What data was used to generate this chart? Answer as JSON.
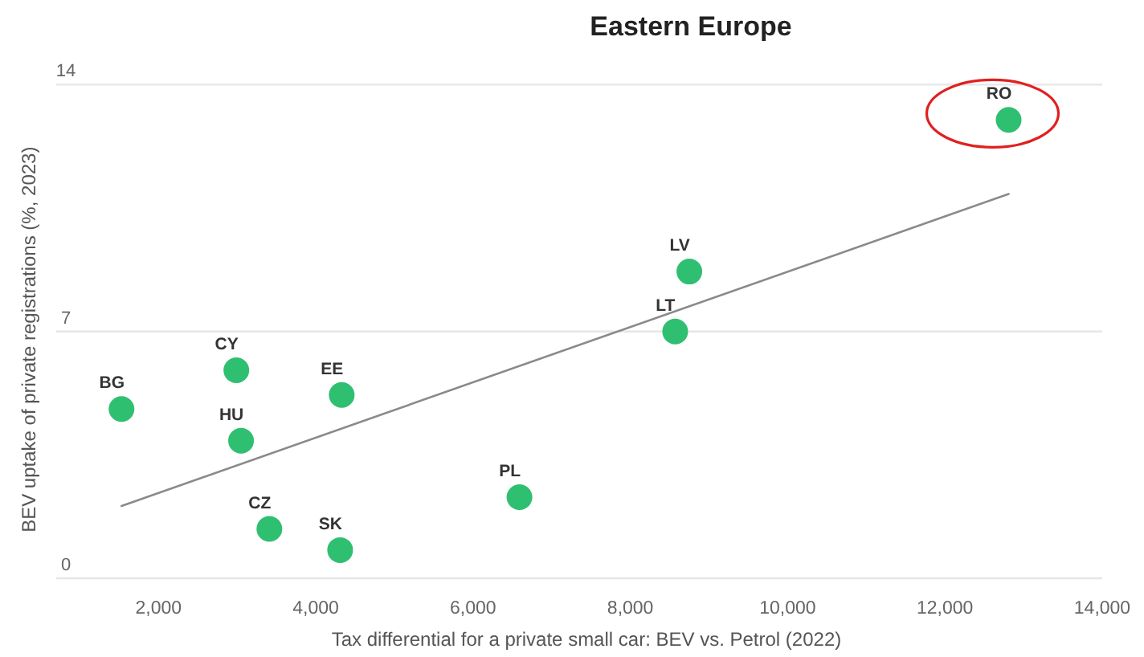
{
  "chart_data": {
    "type": "scatter",
    "title": "Eastern Europe",
    "xlabel": "Tax differential for a private small car: BEV vs. Petrol (2022)",
    "ylabel": "BEV uptake of private registrations (%, 2023)",
    "xlim": [
      700,
      14000
    ],
    "xticks": [
      {
        "value": 2000,
        "label": "2,000"
      },
      {
        "value": 4000,
        "label": "4,000"
      },
      {
        "value": 6000,
        "label": "6,000"
      },
      {
        "value": 8000,
        "label": "8,000"
      },
      {
        "value": 10000,
        "label": "10,000"
      },
      {
        "value": 12000,
        "label": "12,000"
      },
      {
        "value": 14000,
        "label": "14,000"
      }
    ],
    "ylim": [
      0,
      14
    ],
    "yticks": [
      0,
      7,
      14
    ],
    "grid": "y",
    "series": [
      {
        "marker": "circle",
        "color": "#2fbf71",
        "x": [
          1530,
          2990,
          4330,
          3050,
          6590,
          3410,
          4310,
          8750,
          8570,
          12810
        ],
        "values": [
          4.8,
          5.9,
          5.2,
          3.9,
          2.3,
          1.4,
          0.8,
          8.7,
          7.0,
          13.0
        ]
      },
      {
        "type": "line",
        "color": "#8a8a8a",
        "x": [
          1530,
          12810
        ],
        "values": [
          2.05,
          10.9
        ]
      }
    ],
    "annotations": [
      {
        "text": "BG",
        "x": 1530,
        "y": 4.8
      },
      {
        "text": "CY",
        "x": 2990,
        "y": 5.9
      },
      {
        "text": "EE",
        "x": 4330,
        "y": 5.2
      },
      {
        "text": "HU",
        "x": 3050,
        "y": 3.9
      },
      {
        "text": "PL",
        "x": 6590,
        "y": 2.3
      },
      {
        "text": "CZ",
        "x": 3410,
        "y": 1.4
      },
      {
        "text": "SK",
        "x": 4310,
        "y": 0.8
      },
      {
        "text": "LV",
        "x": 8750,
        "y": 8.7
      },
      {
        "text": "LT",
        "x": 8570,
        "y": 7.0
      },
      {
        "text": "RO",
        "x": 12810,
        "y": 13.0
      }
    ]
  }
}
